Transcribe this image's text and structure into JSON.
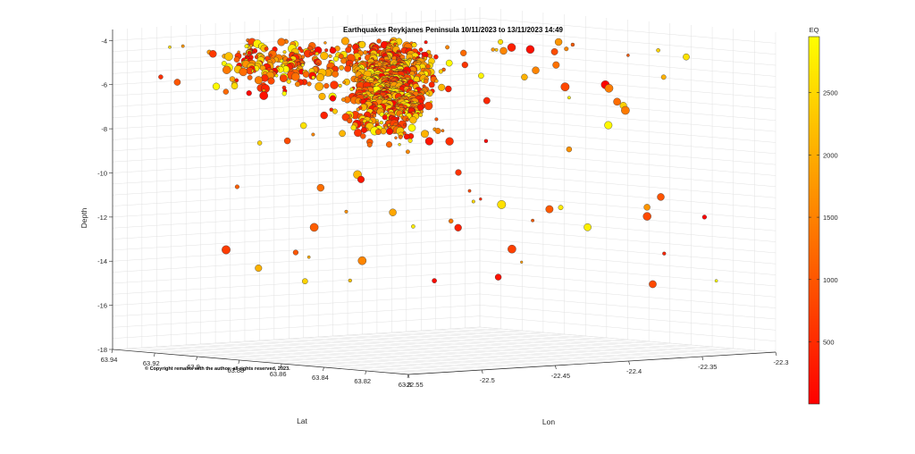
{
  "chart_data": {
    "type": "scatter3d",
    "title": "Earthquakes Reykjanes Peninsula 10/11/2023 to 13/11/2023 14:49",
    "xlabel": "Lat",
    "ylabel": "Lon",
    "zlabel": "Depth",
    "xlim": [
      63.8,
      63.94
    ],
    "ylim": [
      -22.55,
      -22.3
    ],
    "zlim": [
      -18,
      -3.5
    ],
    "grid": true,
    "lat_ticks": [
      "63.94",
      "63.92",
      "63.9",
      "63.88",
      "63.86",
      "63.84",
      "63.82",
      "63.8"
    ],
    "lon_ticks": [
      "-22.55",
      "-22.5",
      "-22.45",
      "-22.4",
      "-22.35",
      "-22.3"
    ],
    "depth_ticks": [
      "-4",
      "-6",
      "-8",
      "-10",
      "-12",
      "-14",
      "-16",
      "-18"
    ],
    "colorbar": {
      "label": "EQ",
      "ticks": [
        "500",
        "1000",
        "1500",
        "2000",
        "2500"
      ],
      "range": [
        1,
        2950
      ],
      "colormap": "autumn",
      "low_color": "#ff0000",
      "high_color": "#ffff00"
    },
    "annotation": "© Copyright remains with the author; all rights reserved, 2023.",
    "points_summary": "About 2900 events clustered near Lat 63.87–63.9, Lon -22.48 to -22.43, Depth -4 to -9"
  }
}
